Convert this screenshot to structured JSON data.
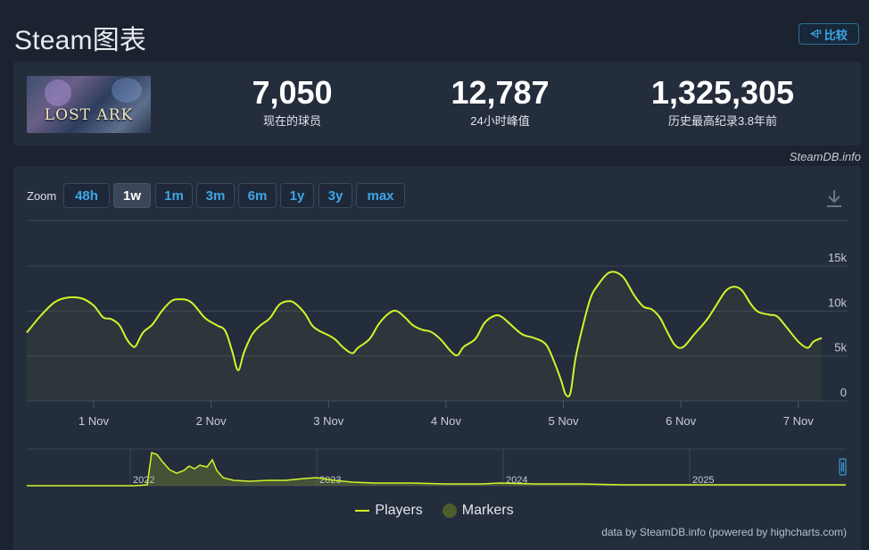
{
  "header": {
    "title": "Steam图表",
    "compare_label": "比较",
    "compare_icon": "chart-compare-icon"
  },
  "stats": {
    "game_logo_text": "LOST ARK",
    "current_players": "7,050",
    "current_label": "现在的球员",
    "peak_24h": "12,787",
    "peak_24h_label": "24小时峰值",
    "all_time_peak": "1,325,305",
    "all_time_label": "历史最高纪录3.8年前"
  },
  "watermark": "SteamDB.info",
  "zoom": {
    "label": "Zoom",
    "buttons": [
      "48h",
      "1w",
      "1m",
      "3m",
      "6m",
      "1y",
      "3y",
      "max"
    ],
    "active": "1w"
  },
  "legend": {
    "players": "Players",
    "markers": "Markers"
  },
  "credit": "data by SteamDB.info (powered by highcharts.com)",
  "colors": {
    "line": "#d1f52a",
    "background": "#242d3c",
    "grid": "#3a4558",
    "accent": "#3ea6e6"
  },
  "chart_data": {
    "type": "line",
    "ylim": [
      0,
      15000
    ],
    "y_ticks": [
      {
        "value": 15000,
        "label": "15k"
      },
      {
        "value": 10000,
        "label": "10k"
      },
      {
        "value": 5000,
        "label": "5k"
      },
      {
        "value": 0,
        "label": "0"
      }
    ],
    "x_ticks": [
      {
        "value": 0,
        "label": "1 Nov"
      },
      {
        "value": 1,
        "label": "2 Nov"
      },
      {
        "value": 2,
        "label": "3 Nov"
      },
      {
        "value": 3,
        "label": "4 Nov"
      },
      {
        "value": 4,
        "label": "5 Nov"
      },
      {
        "value": 5,
        "label": "6 Nov"
      },
      {
        "value": 6,
        "label": "7 Nov"
      }
    ],
    "xlim": [
      -0.57,
      6.42
    ],
    "series": [
      {
        "name": "Players",
        "points": [
          [
            -0.57,
            7600
          ],
          [
            -0.45,
            9500
          ],
          [
            -0.33,
            11000
          ],
          [
            -0.22,
            11500
          ],
          [
            -0.1,
            11400
          ],
          [
            0.0,
            10600
          ],
          [
            0.08,
            9300
          ],
          [
            0.15,
            9100
          ],
          [
            0.22,
            8400
          ],
          [
            0.28,
            6900
          ],
          [
            0.33,
            6100
          ],
          [
            0.36,
            6150
          ],
          [
            0.42,
            7600
          ],
          [
            0.5,
            8500
          ],
          [
            0.58,
            10000
          ],
          [
            0.66,
            11100
          ],
          [
            0.72,
            11300
          ],
          [
            0.8,
            11200
          ],
          [
            0.86,
            10600
          ],
          [
            0.95,
            9200
          ],
          [
            1.05,
            8400
          ],
          [
            1.12,
            7800
          ],
          [
            1.18,
            5500
          ],
          [
            1.23,
            3400
          ],
          [
            1.28,
            5400
          ],
          [
            1.35,
            7400
          ],
          [
            1.42,
            8400
          ],
          [
            1.5,
            9200
          ],
          [
            1.58,
            10700
          ],
          [
            1.66,
            11100
          ],
          [
            1.72,
            10800
          ],
          [
            1.8,
            9700
          ],
          [
            1.86,
            8400
          ],
          [
            1.92,
            7800
          ],
          [
            2.0,
            7300
          ],
          [
            2.06,
            6800
          ],
          [
            2.12,
            6000
          ],
          [
            2.2,
            5300
          ],
          [
            2.25,
            5900
          ],
          [
            2.35,
            6900
          ],
          [
            2.43,
            8600
          ],
          [
            2.52,
            9800
          ],
          [
            2.58,
            10000
          ],
          [
            2.65,
            9300
          ],
          [
            2.72,
            8400
          ],
          [
            2.8,
            7900
          ],
          [
            2.87,
            7700
          ],
          [
            2.95,
            6900
          ],
          [
            3.05,
            5400
          ],
          [
            3.1,
            5100
          ],
          [
            3.15,
            6000
          ],
          [
            3.25,
            6900
          ],
          [
            3.33,
            8700
          ],
          [
            3.42,
            9500
          ],
          [
            3.48,
            9300
          ],
          [
            3.55,
            8500
          ],
          [
            3.65,
            7400
          ],
          [
            3.75,
            7000
          ],
          [
            3.85,
            6300
          ],
          [
            3.92,
            4400
          ],
          [
            3.98,
            2300
          ],
          [
            4.02,
            700
          ],
          [
            4.06,
            900
          ],
          [
            4.1,
            4500
          ],
          [
            4.15,
            7500
          ],
          [
            4.23,
            11400
          ],
          [
            4.3,
            13000
          ],
          [
            4.38,
            14200
          ],
          [
            4.45,
            14300
          ],
          [
            4.52,
            13600
          ],
          [
            4.6,
            11800
          ],
          [
            4.68,
            10500
          ],
          [
            4.75,
            10200
          ],
          [
            4.82,
            9300
          ],
          [
            4.88,
            7800
          ],
          [
            4.95,
            6200
          ],
          [
            5.02,
            6000
          ],
          [
            5.12,
            7500
          ],
          [
            5.22,
            9000
          ],
          [
            5.3,
            10600
          ],
          [
            5.38,
            12200
          ],
          [
            5.45,
            12700
          ],
          [
            5.52,
            12300
          ],
          [
            5.6,
            10700
          ],
          [
            5.66,
            9900
          ],
          [
            5.75,
            9600
          ],
          [
            5.82,
            9400
          ],
          [
            5.9,
            8200
          ],
          [
            6.0,
            6600
          ],
          [
            6.08,
            5900
          ],
          [
            6.13,
            6600
          ],
          [
            6.2,
            7000
          ]
        ]
      }
    ],
    "navigator": {
      "labels": [
        "2022",
        "2023",
        "2024",
        "2025"
      ]
    }
  }
}
